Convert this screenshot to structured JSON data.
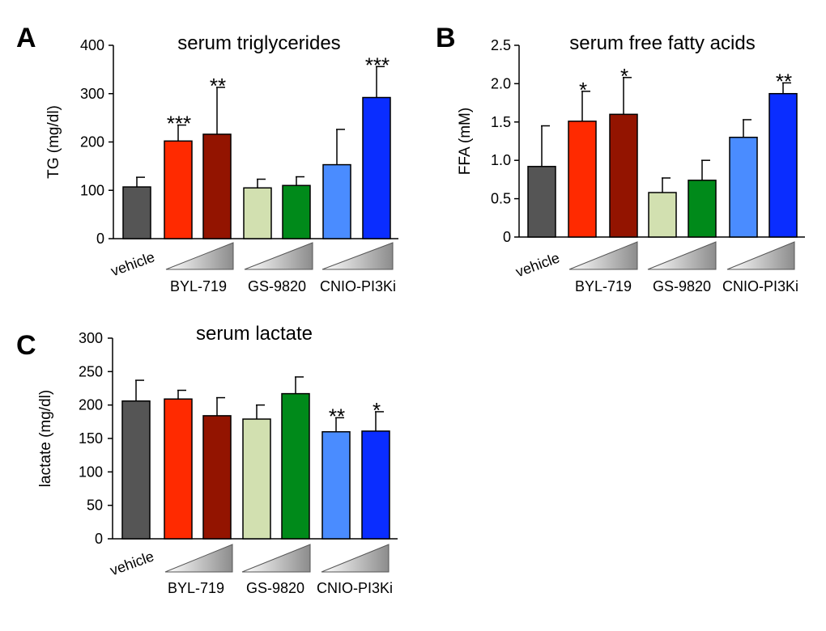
{
  "chart_data": [
    {
      "panel_label": "A",
      "type": "bar",
      "title": "serum triglycerides",
      "ylabel": "TG (mg/dl)",
      "ylim": [
        0,
        400
      ],
      "yticks": [
        0,
        100,
        200,
        300,
        400
      ],
      "ytick_labels": [
        "0",
        "100",
        "200",
        "300",
        "400"
      ],
      "vehicle_label": "vehicle",
      "group_labels": [
        "BYL-719",
        "GS-9820",
        "CNIO-PI3Ki"
      ],
      "bars": [
        {
          "group": "vehicle",
          "value": 107,
          "error": 20,
          "sig": "",
          "color": "#555555"
        },
        {
          "group": "BYL-719",
          "dose": "low",
          "value": 202,
          "error": 33,
          "sig": "***",
          "color": "#ff2a00"
        },
        {
          "group": "BYL-719",
          "dose": "high",
          "value": 216,
          "error": 97,
          "sig": "**",
          "color": "#931400"
        },
        {
          "group": "GS-9820",
          "dose": "low",
          "value": 105,
          "error": 18,
          "sig": "",
          "color": "#d2e0b0"
        },
        {
          "group": "GS-9820",
          "dose": "high",
          "value": 110,
          "error": 18,
          "sig": "",
          "color": "#008a1a"
        },
        {
          "group": "CNIO-PI3Ki",
          "dose": "low",
          "value": 153,
          "error": 73,
          "sig": "",
          "color": "#4a8cff"
        },
        {
          "group": "CNIO-PI3Ki",
          "dose": "high",
          "value": 292,
          "error": 64,
          "sig": "***",
          "color": "#0a2dff"
        }
      ]
    },
    {
      "panel_label": "B",
      "type": "bar",
      "title": "serum free fatty acids",
      "ylabel": "FFA (mM)",
      "ylim": [
        0,
        2.5
      ],
      "yticks": [
        0,
        0.5,
        1.0,
        1.5,
        2.0,
        2.5
      ],
      "ytick_labels": [
        "0",
        "0.5",
        "1.0",
        "1.5",
        "2.0",
        "2.5"
      ],
      "vehicle_label": "vehicle",
      "group_labels": [
        "BYL-719",
        "GS-9820",
        "CNIO-PI3Ki"
      ],
      "bars": [
        {
          "group": "vehicle",
          "value": 0.92,
          "error": 0.53,
          "sig": "",
          "color": "#555555"
        },
        {
          "group": "BYL-719",
          "dose": "low",
          "value": 1.51,
          "error": 0.39,
          "sig": "*",
          "color": "#ff2a00"
        },
        {
          "group": "BYL-719",
          "dose": "high",
          "value": 1.6,
          "error": 0.48,
          "sig": "*",
          "color": "#931400"
        },
        {
          "group": "GS-9820",
          "dose": "low",
          "value": 0.58,
          "error": 0.19,
          "sig": "",
          "color": "#d2e0b0"
        },
        {
          "group": "GS-9820",
          "dose": "high",
          "value": 0.74,
          "error": 0.26,
          "sig": "",
          "color": "#008a1a"
        },
        {
          "group": "CNIO-PI3Ki",
          "dose": "low",
          "value": 1.3,
          "error": 0.23,
          "sig": "",
          "color": "#4a8cff"
        },
        {
          "group": "CNIO-PI3Ki",
          "dose": "high",
          "value": 1.87,
          "error": 0.14,
          "sig": "**",
          "color": "#0a2dff"
        }
      ]
    },
    {
      "panel_label": "C",
      "type": "bar",
      "title": "serum lactate",
      "ylabel": "lactate (mg/dl)",
      "ylim": [
        0,
        300
      ],
      "yticks": [
        0,
        50,
        100,
        150,
        200,
        250,
        300
      ],
      "ytick_labels": [
        "0",
        "50",
        "100",
        "150",
        "200",
        "250",
        "300"
      ],
      "vehicle_label": "vehicle",
      "group_labels": [
        "BYL-719",
        "GS-9820",
        "CNIO-PI3Ki"
      ],
      "bars": [
        {
          "group": "vehicle",
          "value": 206,
          "error": 31,
          "sig": "",
          "color": "#555555"
        },
        {
          "group": "BYL-719",
          "dose": "low",
          "value": 209,
          "error": 13,
          "sig": "",
          "color": "#ff2a00"
        },
        {
          "group": "BYL-719",
          "dose": "high",
          "value": 184,
          "error": 27,
          "sig": "",
          "color": "#931400"
        },
        {
          "group": "GS-9820",
          "dose": "low",
          "value": 179,
          "error": 21,
          "sig": "",
          "color": "#d2e0b0"
        },
        {
          "group": "GS-9820",
          "dose": "high",
          "value": 217,
          "error": 25,
          "sig": "",
          "color": "#008a1a"
        },
        {
          "group": "CNIO-PI3Ki",
          "dose": "low",
          "value": 160,
          "error": 21,
          "sig": "**",
          "color": "#4a8cff"
        },
        {
          "group": "CNIO-PI3Ki",
          "dose": "high",
          "value": 161,
          "error": 29,
          "sig": "*",
          "color": "#0a2dff"
        }
      ]
    }
  ]
}
